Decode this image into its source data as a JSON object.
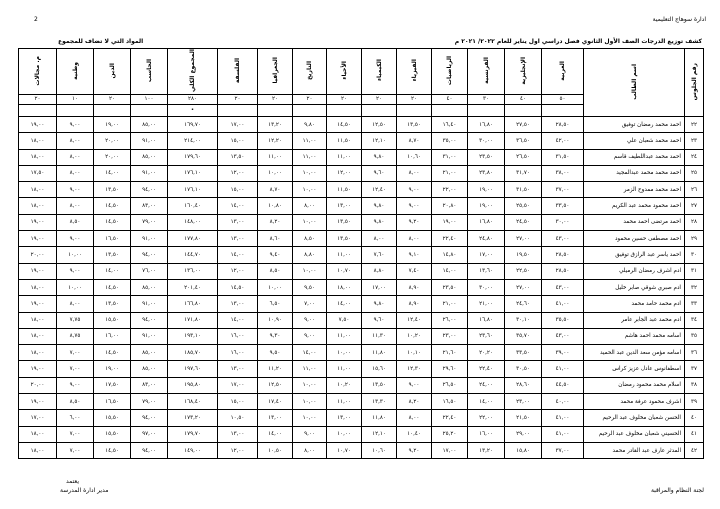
{
  "header": {
    "organization": "ادارة سوهاج التعليمية",
    "page_number": "2",
    "title": "كشف توزيع الدرجات الصف الأول الثانوي فصل دراسي اول يناير للعام ٢٠٢٢/ ٢٠٢١ م",
    "excluded_note": "المواد التي لا تضاف للمجموع"
  },
  "table": {
    "columns": [
      "رقم الجلوس",
      "اسم الطالب",
      "العربية",
      "الإنجليزية",
      "الفرنسية",
      "الرياضيات",
      "الفيزياء",
      "الكيمياء",
      "الأحياء",
      "التاريخ",
      "الجغرافيا",
      "الفلسفة",
      "المجموع الكلي",
      "الحاسب",
      "الدين",
      "وطنية",
      "م. مجالات"
    ],
    "max_marks": [
      "",
      "",
      "٥٠",
      "٤٠",
      "٣٠",
      "٤٠",
      "٢٠",
      "٢٠",
      "٢٠",
      "٢٠",
      "٢٠",
      "٢٠",
      "٢٨٠",
      "١٠٠",
      "٢٠",
      "١٠",
      "٢٠"
    ],
    "marker_row": [
      "",
      "",
      "",
      "",
      "",
      "",
      "",
      "",
      "",
      "",
      "",
      "",
      "•",
      "",
      "",
      "",
      ""
    ],
    "rows": [
      [
        "٢٢",
        "احمد محمد رمضان توفيق",
        "٢٨,٥٠",
        "٢٧,٥٠",
        "١٦,٨٠",
        "١٦,٤٠",
        "١٣,٥٠",
        "١٢,٥٠",
        "١٤,٥٠",
        "٩,٨٠",
        "١٣,٢٠",
        "١٧,٠٠",
        "١٦٩,٧٠",
        "٨٥,٠٠",
        "١٩,٠٠",
        "٩,٠٠",
        "١٩,٠٠"
      ],
      [
        "٢٣",
        "احمد محمد شعبان علي",
        "٤٢,٠٠",
        "٣٦,٥٠",
        "٣٠,٠٠",
        "٣٥,٠٠",
        "٨,٧٠",
        "١٢,١٠",
        "١١,٥٠",
        "١١,٠٠",
        "١٢,٢٠",
        "١٥,٠٠",
        "٢١٤,٠٠",
        "٩١,٠٠",
        "٢٠,٠٠",
        "٨,٠٠",
        "١٨,٠٠"
      ],
      [
        "٢٤",
        "احمد محمد عبداللطيف قاسم",
        "٣١,٥٠",
        "٢٦,٥٠",
        "٢٣,٥٠",
        "٣١,٠٠",
        "١٠,٦٠",
        "٩,٨٠",
        "١١,٠٠",
        "١١,٠٠",
        "١١,٠٠",
        "١٣,٥٠",
        "١٧٩,٦٠",
        "٨٥,٠٠",
        "٢٠,٠٠",
        "٨,٠٠",
        "١٨,٠٠"
      ],
      [
        "٢٥",
        "احمد محمد محمد عبدالمجيد",
        "٣٨,٠٠",
        "٣١,٧٠",
        "٢٣,٨٠",
        "٢١,٠٠",
        "٨,٠٠",
        "٩,٦٠",
        "١٢,٠٠",
        "١٠,٠٠",
        "١٠,٠٠",
        "١٢,٠٠",
        "١٧٦,١٠",
        "٩١,٠٠",
        "١٤,٠٠",
        "٨,٠٠",
        "١٧,٥٠"
      ],
      [
        "٢٦",
        "احمد محمد ممدوح الزمر",
        "٣٧,٠٠",
        "٣١,٥٠",
        "١٩,٠٠",
        "٢٢,٠٠",
        "٩,٠٠",
        "١٢,٤٠",
        "١١,٥٠",
        "١٠,٠٠",
        "٨,٧٠",
        "١٥,٠٠",
        "١٧٦,١٠",
        "٩٤,٠٠",
        "١٣,٥٠",
        "٩,٠٠",
        "١٨,٠٠"
      ],
      [
        "٢٧",
        "احمد محمود محمد عبد الكريم",
        "٣٣,٥٠",
        "٢٥,٥٠",
        "١٩,٠٠",
        "٢٠,٨٠",
        "٩,٠٠",
        "٩,٨٠",
        "١٣,٠٠",
        "٨,٠٠",
        "١٠,٨٠",
        "١٤,٠٠",
        "١٦٠,٤٠",
        "٨٣,٠٠",
        "١٤,٥٠",
        "٨,٠٠",
        "١٨,٠٠"
      ],
      [
        "٢٨",
        "احمد مرتضى احمد محمد",
        "٣٠,٠٠",
        "٢٤,٥٠",
        "١٦,٨٠",
        "١٩,٠٠",
        "٩,٢٠",
        "٩,٨٠",
        "١٣,٥٠",
        "١٠,٠٠",
        "٨,٢٠",
        "١٣,٠٠",
        "١٤٨,٠٠",
        "٧٩,٠٠",
        "١٤,٥٠",
        "٨,٥٠",
        "١٩,٠٠"
      ],
      [
        "٢٩",
        "احمد مصطفى حسين محمود",
        "٤٣,٠٠",
        "٢٧,٠٠",
        "٢٤,٨٠",
        "٢٢,٤٠",
        "٨,٠٠",
        "٨,٠٠",
        "١٣,٥٠",
        "٨,٥٠",
        "٨,٦٠",
        "١٣,٠٠",
        "١٧٧,٨٠",
        "٩١,٠٠",
        "١٦,٥٠",
        "٩,٠٠",
        "١٩,٠٠"
      ],
      [
        "٣٠",
        "احمد ياسر عبد الرازق توفيق",
        "٢٨,٥٠",
        "١٩,٥٠",
        "١٧,٠٠",
        "١٤,٨٠",
        "٩,١٠",
        "٧,٦٠",
        "١١,٠٠",
        "٨,٨٠",
        "٩,٤٠",
        "١٤,٠٠",
        "١٤٤,٧٠",
        "٩٤,٠٠",
        "١٣,٥٠",
        "١٠,٠٠",
        "٢٠,٠٠"
      ],
      [
        "٣١",
        "ادم اشرف رمضان الرميلي",
        "٢٨,٥٠",
        "٢٢,٥٠",
        "١٣,٦٠",
        "١٤,٠٠",
        "٧,٤٠",
        "٨,٨٠",
        "١٠,٧٠",
        "١٠,٠٠",
        "٨,٥٠",
        "١٢,٠٠",
        "١٣٦,٠٠",
        "٧٦,٠٠",
        "١٤,٠٠",
        "٩,٠٠",
        "١٩,٠٠"
      ],
      [
        "٣٢",
        "ادم صبري شوقي صابر خليل",
        "٤٣,٠٠",
        "٢٧,٠٠",
        "٣٠,٠٠",
        "٢٣,٥٠",
        "٨,٩٠",
        "١٧,٠٠",
        "١٨,٠٠",
        "٩,٥٠",
        "١٠,٠٠",
        "١٤,٥٠",
        "٢٠١,٤٠",
        "٨٥,٠٠",
        "١٤,٥٠",
        "١٠,٠٠",
        "١٨,٠٠"
      ],
      [
        "٣٣",
        "ادم محمد حامد محمد",
        "٤١,٠٠",
        "٢٤,٦٠",
        "٢١,٠٠",
        "٢١,٠٠",
        "٨,٩٠",
        "٩,٨٠",
        "١٤,٠٠",
        "٧,٠٠",
        "٦,٥٠",
        "١٣,٠٠",
        "١٦٦,٨٠",
        "٩١,٠٠",
        "١٣,٥٠",
        "٨,٠٠",
        "١٩,٠٠"
      ],
      [
        "٣٤",
        "ادم محمد عبد الجابر عامر",
        "٣٥,٥٠",
        "٣٠,١٠",
        "١٦,٨٠",
        "٢٦,٠٠",
        "١٢,٤٠",
        "٩,٦٠",
        "٧,٥٠",
        "٩,٠٠",
        "١٠,٩٠",
        "١٤,٠٠",
        "١٧١,٨٠",
        "٩٤,٠٠",
        "١٥,٥٠",
        "٧,٧٥",
        "١٨,٠٠"
      ],
      [
        "٣٥",
        "اسامه محمد احمد هاشم",
        "٤٣,٠٠",
        "٣٥,٧٠",
        "٢٣,٦٠",
        "٢٣,٠٠",
        "١٠,٢٠",
        "١١,٣٠",
        "١١,٠٠",
        "٩,٠٠",
        "٩,٣٠",
        "١٦,٠٠",
        "١٩٣,١٠",
        "٩١,٠٠",
        "١٦,٠٠",
        "٨,٧٥",
        "١٨,٠٠"
      ],
      [
        "٣٦",
        "اسامه مؤمن سعد الدين عبد الحميد",
        "٣٩,٠٠",
        "٣٣,٥٠",
        "٢٠,٢٠",
        "٢١,٦٠",
        "١٠,١٠",
        "١١,٨٠",
        "١٠,٠٠",
        "١٤,٠٠",
        "٩,٥٠",
        "١٦,٠٠",
        "١٨٥,٧٠",
        "٨٥,٠٠",
        "١٤,٥٠",
        "٧,٠٠",
        "١٨,٠٠"
      ],
      [
        "٣٧",
        "اسطفانوس عادل عزيز كراس",
        "٤١,٠٠",
        "٣٠,٥٠",
        "٢٢,٤٠",
        "٢٩,٦٠",
        "١٢,٣٠",
        "١٥,٦٠",
        "١١,٠٠",
        "١١,٠٠",
        "١١,٢٠",
        "١٣,٠٠",
        "١٩٧,٦٠",
        "٨٥,٠٠",
        "١٩,٠٠",
        "٧,٠٠",
        "١٩,٠٠"
      ],
      [
        "٣٨",
        "اسلام محمد محمود رمضان",
        "٤٤,٥٠",
        "٢٨,٦٠",
        "٢٤,٠٠",
        "٢٦,٥٠",
        "٩,٠٠",
        "١٣,٥٠",
        "١٠,٢٠",
        "١٠,٠٠",
        "١٢,٥٠",
        "١٧,٠٠",
        "١٩٥,٨٠",
        "٨٣,٠٠",
        "١٧,٥٠",
        "٩,٠٠",
        "٢٠,٠٠"
      ],
      [
        "٣٩",
        "اشرف محمود عرفة محمد",
        "٤٠,٠٠",
        "٢٣,٠٠",
        "١٤,٠٠",
        "١٦,٥٠",
        "٨,٢٠",
        "١٣,٣٠",
        "١١,٠٠",
        "١٠,٠٠",
        "١٧,٤٠",
        "١٥,٠٠",
        "١٦٨,٤٠",
        "٧٩,٠٠",
        "١٦,٥٠",
        "٨,٥٠",
        "١٩,٠٠"
      ],
      [
        "٤٠",
        "الحسن شعبان مخلوف عبد الرحيم",
        "٤١,٠٠",
        "٢١,٥٠",
        "٢٢,٠٠",
        "٢٢,٤٠",
        "٨,٠٠",
        "١١,٨٠",
        "١٣,٠٠",
        "١٠,٠٠",
        "١٣,٠٠",
        "١٠,٥٠",
        "١٧٣,٢٠",
        "٩٤,٠٠",
        "١٥,٥٠",
        "٦,٠٠",
        "١٧,٠٠"
      ],
      [
        "٤١",
        "الحسيني شعبان مخلوف عبد الرحيم",
        "٤١,٠٠",
        "٢٩,٠٠",
        "١٦,٠٠",
        "٢٥,٢٠",
        "١٠,٤٠",
        "١٢,١٠",
        "١٠,٠٠",
        "٩,٠٠",
        "١٤,٠٠",
        "١٣,٠٠",
        "١٧٩,٧٠",
        "٩٧,٠٠",
        "١٥,٥٠",
        "٧,٠٠",
        "١٨,٠٠"
      ],
      [
        "٤٢",
        "المدثر عارف عبد القادر محمد",
        "٣٧,٠٠",
        "١٥,٨٠",
        "١٣,٢٠",
        "١٧,٠٠",
        "٩,٢٠",
        "١٠,٦٠",
        "١٠,٧٠",
        "٨,٠٠",
        "١٠,٥٠",
        "١٢,٠٠",
        "١٤٩,٠٠",
        "٩٤,٠٠",
        "١٤,٥٠",
        "٧,٠٠",
        "١٨,٠٠"
      ]
    ]
  },
  "footer": {
    "approve": "يعتمد",
    "principal": "مدير ادارة المدرسة",
    "committee": "لجنة النظام والمراقبة"
  }
}
